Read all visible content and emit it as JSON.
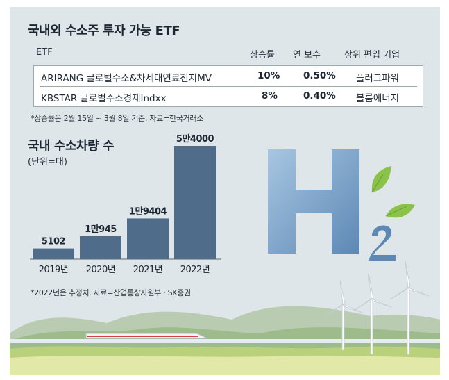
{
  "etf": {
    "title": "국내외 수소주 투자 가능 ETF",
    "headers": [
      "ETF",
      "상승률",
      "연 보수",
      "상위 편입 기업"
    ],
    "rows": [
      {
        "name": "ARIRANG 글로벌수소&차세대연료전지MV",
        "rate": "10%",
        "fee": "0.50%",
        "top": "플러그파워"
      },
      {
        "name": "KBSTAR 글로벌수소경제Indxx",
        "rate": "8%",
        "fee": "0.40%",
        "top": "블룸에너지"
      }
    ],
    "note": "*상승률은 2월 15일 ~ 3월 8일 기준. 자료=한국거래소"
  },
  "chart_data": {
    "type": "bar",
    "title": "국내 수소차량 수",
    "unit": "(단위=대)",
    "categories": [
      "2019년",
      "2020년",
      "2021년",
      "2022년"
    ],
    "values": [
      5102,
      10945,
      19404,
      54000
    ],
    "value_labels": [
      "5102",
      "1만945",
      "1만9404",
      "5만4000"
    ],
    "ylim": [
      0,
      54000
    ],
    "grid": false,
    "bar_color": "#4f6d8a",
    "note": "*2022년은 추정치. 자료=산업통상자원부 · SK증권"
  },
  "colors": {
    "background": "#dfe6e9",
    "bar": "#4f6d8a",
    "h2_blue": "#7fa8cf",
    "leaf_green": "#8ac24a"
  }
}
